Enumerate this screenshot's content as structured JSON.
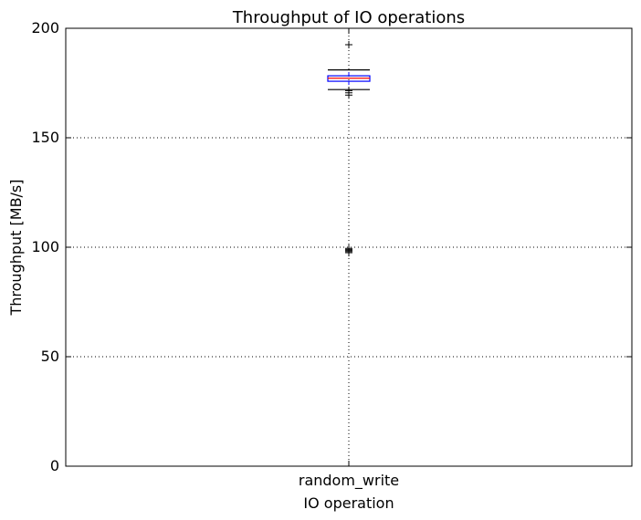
{
  "chart_data": {
    "type": "box",
    "title": "Throughput of IO operations",
    "xlabel": "IO operation",
    "ylabel": "Throughput [MB/s]",
    "ylim": [
      0,
      200
    ],
    "yticks": [
      0,
      50,
      100,
      150,
      200
    ],
    "grid": true,
    "categories": [
      "random_write"
    ],
    "boxes": [
      {
        "category": "random_write",
        "whisker_low": 172,
        "q1": 175.8,
        "median": 177.2,
        "q3": 178.3,
        "whisker_high": 181,
        "outliers": [
          192.5,
          171.5,
          170.5,
          169.5,
          99.5,
          99,
          98.5,
          98,
          97.5
        ]
      }
    ],
    "colors": {
      "box": "#0000ff",
      "median": "#ff0000",
      "whisker": "#000000",
      "grid": "#000000"
    }
  }
}
